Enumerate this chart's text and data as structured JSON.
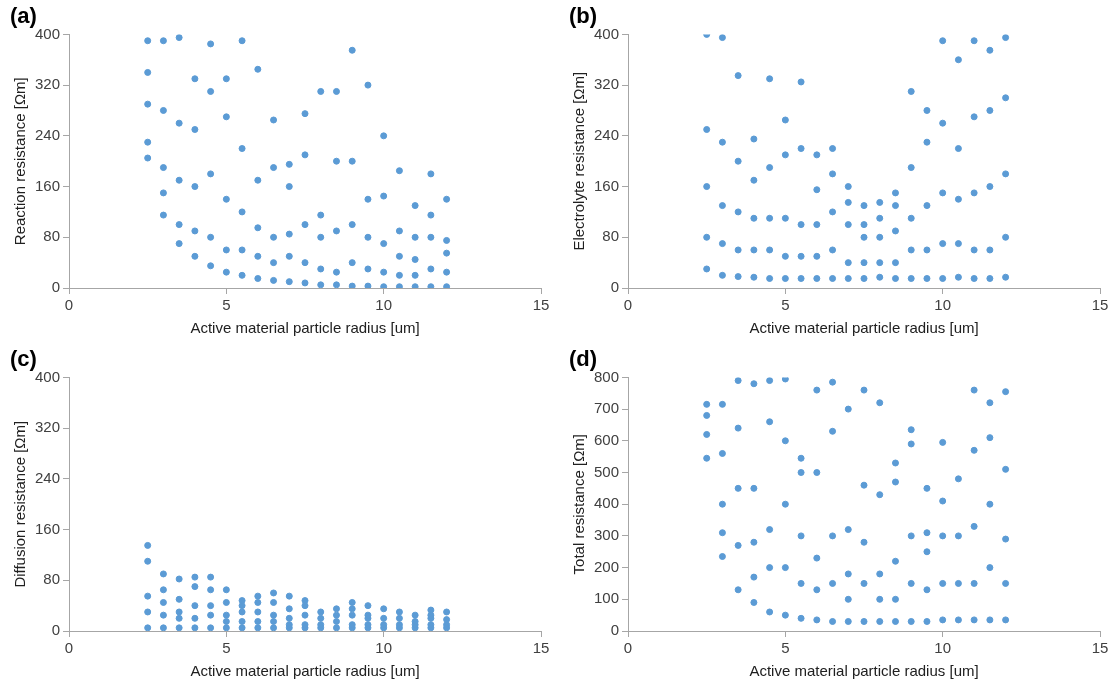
{
  "chart_data": [
    {
      "type": "scatter",
      "title": "(a)",
      "xlabel": "Active material particle radius [um]",
      "ylabel": "Reaction resistance [Ωm]",
      "xlim": [
        0,
        15
      ],
      "xticks": [
        0,
        5,
        10,
        15
      ],
      "ylim": [
        0,
        400
      ],
      "yticks": [
        0,
        80,
        160,
        240,
        320,
        400
      ],
      "grid": false,
      "legend": false,
      "marker": "circle",
      "series": [
        {
          "color": "#5b9bd5",
          "x": [
            2.5,
            2.5,
            2.5,
            2.5,
            2.5,
            3,
            3,
            3,
            3,
            3,
            3.5,
            3.5,
            3.5,
            3.5,
            3.5,
            4,
            4,
            4,
            4,
            4,
            4.5,
            4.5,
            4.5,
            4.5,
            4.5,
            5,
            5,
            5,
            5,
            5,
            5.5,
            5.5,
            5.5,
            5.5,
            5.5,
            6,
            6,
            6,
            6,
            6,
            6.5,
            6.5,
            6.5,
            6.5,
            6.5,
            7,
            7,
            7,
            7,
            7,
            7.5,
            7.5,
            7.5,
            7.5,
            7.5,
            8,
            8,
            8,
            8,
            8,
            8.5,
            8.5,
            8.5,
            8.5,
            8.5,
            9,
            9,
            9,
            9,
            9,
            9.5,
            9.5,
            9.5,
            9.5,
            9.5,
            10,
            10,
            10,
            10,
            10,
            10.5,
            10.5,
            10.5,
            10.5,
            10.5,
            11,
            11,
            11,
            11,
            11,
            11.5,
            11.5,
            11.5,
            11.5,
            11.5,
            12,
            12,
            12,
            12,
            12
          ],
          "values": [
            205,
            230,
            290,
            340,
            390,
            115,
            150,
            190,
            280,
            390,
            70,
            100,
            170,
            260,
            395,
            50,
            90,
            160,
            250,
            330,
            35,
            80,
            180,
            310,
            385,
            25,
            60,
            140,
            270,
            330,
            20,
            60,
            120,
            220,
            390,
            15,
            50,
            95,
            170,
            345,
            12,
            40,
            80,
            190,
            265,
            10,
            50,
            85,
            160,
            195,
            8,
            40,
            100,
            210,
            275,
            5,
            30,
            80,
            115,
            310,
            5,
            25,
            90,
            200,
            310,
            3,
            40,
            100,
            200,
            375,
            3,
            30,
            80,
            140,
            320,
            2,
            25,
            70,
            145,
            240,
            2,
            20,
            50,
            90,
            185,
            2,
            20,
            45,
            80,
            130,
            2,
            30,
            80,
            115,
            180,
            2,
            25,
            55,
            75,
            140
          ]
        }
      ]
    },
    {
      "type": "scatter",
      "title": "(b)",
      "xlabel": "Active material particle radius [um]",
      "ylabel": "Electrolyte resistance [Ωm]",
      "xlim": [
        0,
        15
      ],
      "xticks": [
        0,
        5,
        10,
        15
      ],
      "ylim": [
        0,
        400
      ],
      "yticks": [
        0,
        80,
        160,
        240,
        320,
        400
      ],
      "grid": false,
      "legend": false,
      "marker": "circle",
      "series": [
        {
          "color": "#5b9bd5",
          "x": [
            2.5,
            2.5,
            2.5,
            2.5,
            2.5,
            3,
            3,
            3,
            3,
            3,
            3.5,
            3.5,
            3.5,
            3.5,
            3.5,
            4,
            4,
            4,
            4,
            4,
            4.5,
            4.5,
            4.5,
            4.5,
            4.5,
            5,
            5,
            5,
            5,
            5,
            5.5,
            5.5,
            5.5,
            5.5,
            5.5,
            6,
            6,
            6,
            6,
            6,
            6.5,
            6.5,
            6.5,
            6.5,
            6.5,
            7,
            7,
            7,
            7,
            7,
            7.5,
            7.5,
            7.5,
            7.5,
            7.5,
            8,
            8,
            8,
            8,
            8,
            8.5,
            8.5,
            8.5,
            8.5,
            8.5,
            9,
            9,
            9,
            9,
            9,
            9.5,
            9.5,
            9.5,
            9.5,
            9.5,
            10,
            10,
            10,
            10,
            10,
            10.5,
            10.5,
            10.5,
            10.5,
            10.5,
            11,
            11,
            11,
            11,
            11,
            11.5,
            11.5,
            11.5,
            11.5,
            11.5,
            12,
            12,
            12,
            12,
            12
          ],
          "values": [
            30,
            80,
            160,
            250,
            400,
            20,
            70,
            130,
            230,
            395,
            18,
            60,
            120,
            200,
            335,
            17,
            60,
            110,
            170,
            235,
            15,
            60,
            110,
            190,
            330,
            15,
            50,
            110,
            210,
            265,
            15,
            50,
            100,
            220,
            325,
            15,
            50,
            100,
            155,
            210,
            15,
            60,
            120,
            180,
            220,
            15,
            40,
            100,
            135,
            160,
            15,
            40,
            80,
            100,
            130,
            17,
            40,
            80,
            110,
            135,
            15,
            40,
            90,
            130,
            150,
            15,
            60,
            110,
            190,
            310,
            15,
            60,
            130,
            230,
            280,
            15,
            70,
            150,
            260,
            390,
            17,
            70,
            140,
            220,
            360,
            15,
            60,
            150,
            270,
            390,
            15,
            60,
            160,
            280,
            375,
            17,
            80,
            180,
            300,
            395
          ]
        }
      ]
    },
    {
      "type": "scatter",
      "title": "(c)",
      "xlabel": "Active material particle radius [um]",
      "ylabel": "Diffusion resistance [Ωm]",
      "xlim": [
        0,
        15
      ],
      "xticks": [
        0,
        5,
        10,
        15
      ],
      "ylim": [
        0,
        400
      ],
      "yticks": [
        0,
        80,
        160,
        240,
        320,
        400
      ],
      "grid": false,
      "legend": false,
      "marker": "circle",
      "series": [
        {
          "color": "#5b9bd5",
          "x": [
            2.5,
            2.5,
            2.5,
            2.5,
            2.5,
            3,
            3,
            3,
            3,
            3,
            3.5,
            3.5,
            3.5,
            3.5,
            3.5,
            4,
            4,
            4,
            4,
            4,
            4.5,
            4.5,
            4.5,
            4.5,
            4.5,
            5,
            5,
            5,
            5,
            5,
            5.5,
            5.5,
            5.5,
            5.5,
            5.5,
            6,
            6,
            6,
            6,
            6,
            6.5,
            6.5,
            6.5,
            6.5,
            6.5,
            7,
            7,
            7,
            7,
            7,
            7.5,
            7.5,
            7.5,
            7.5,
            7.5,
            8,
            8,
            8,
            8,
            8.5,
            8.5,
            8.5,
            8.5,
            9,
            9,
            9,
            9,
            9,
            9.5,
            9.5,
            9.5,
            9.5,
            9.5,
            10,
            10,
            10,
            10,
            10.5,
            10.5,
            10.5,
            10.5,
            11,
            11,
            11,
            11,
            11.5,
            11.5,
            11.5,
            11.5,
            11.5,
            12,
            12,
            12,
            12
          ],
          "values": [
            5,
            30,
            55,
            110,
            135,
            5,
            25,
            45,
            65,
            90,
            5,
            20,
            30,
            50,
            82,
            5,
            20,
            40,
            70,
            85,
            5,
            25,
            40,
            65,
            85,
            5,
            15,
            25,
            45,
            65,
            5,
            15,
            30,
            40,
            48,
            5,
            15,
            30,
            45,
            55,
            5,
            15,
            25,
            45,
            60,
            5,
            10,
            20,
            35,
            55,
            5,
            10,
            25,
            40,
            48,
            5,
            10,
            20,
            30,
            5,
            15,
            25,
            35,
            5,
            10,
            25,
            35,
            45,
            5,
            10,
            20,
            25,
            40,
            5,
            10,
            20,
            35,
            5,
            10,
            20,
            30,
            5,
            10,
            15,
            25,
            5,
            10,
            20,
            25,
            33,
            5,
            10,
            18,
            30
          ]
        }
      ]
    },
    {
      "type": "scatter",
      "title": "(d)",
      "xlabel": "Active material particle radius [um]",
      "ylabel": "Total resistance [Ωm]",
      "xlim": [
        0,
        15
      ],
      "xticks": [
        0,
        5,
        10,
        15
      ],
      "ylim": [
        0,
        800
      ],
      "yticks": [
        0,
        100,
        200,
        300,
        400,
        500,
        600,
        700,
        800
      ],
      "grid": false,
      "legend": false,
      "marker": "circle",
      "series": [
        {
          "color": "#5b9bd5",
          "x": [
            2.5,
            2.5,
            2.5,
            2.5,
            3,
            3,
            3,
            3,
            3,
            3.5,
            3.5,
            3.5,
            3.5,
            3.5,
            4,
            4,
            4,
            4,
            4,
            4.5,
            4.5,
            4.5,
            4.5,
            4.5,
            5,
            5,
            5,
            5,
            5,
            5.5,
            5.5,
            5.5,
            5.5,
            5.5,
            6,
            6,
            6,
            6,
            6,
            6.5,
            6.5,
            6.5,
            6.5,
            6.5,
            7,
            7,
            7,
            7,
            7,
            7.5,
            7.5,
            7.5,
            7.5,
            7.5,
            8,
            8,
            8,
            8,
            8,
            8.5,
            8.5,
            8.5,
            8.5,
            8.5,
            9,
            9,
            9,
            9,
            9,
            9.5,
            9.5,
            9.5,
            9.5,
            9.5,
            10,
            10,
            10,
            10,
            10,
            10.5,
            10.5,
            10.5,
            10.5,
            11,
            11,
            11,
            11,
            11,
            11.5,
            11.5,
            11.5,
            11.5,
            11.5,
            12,
            12,
            12,
            12,
            12
          ],
          "values": [
            545,
            620,
            680,
            715,
            235,
            310,
            400,
            560,
            715,
            130,
            270,
            450,
            640,
            790,
            90,
            170,
            280,
            450,
            780,
            60,
            200,
            320,
            660,
            790,
            50,
            200,
            400,
            600,
            795,
            40,
            150,
            300,
            500,
            545,
            35,
            130,
            230,
            500,
            760,
            30,
            150,
            300,
            630,
            785,
            30,
            100,
            180,
            320,
            700,
            30,
            150,
            280,
            460,
            760,
            30,
            100,
            180,
            430,
            720,
            30,
            100,
            220,
            470,
            530,
            30,
            150,
            300,
            590,
            635,
            30,
            130,
            250,
            310,
            450,
            35,
            150,
            300,
            410,
            595,
            35,
            150,
            300,
            480,
            35,
            150,
            330,
            570,
            760,
            35,
            200,
            400,
            610,
            720,
            35,
            150,
            290,
            510,
            755
          ]
        }
      ]
    }
  ]
}
